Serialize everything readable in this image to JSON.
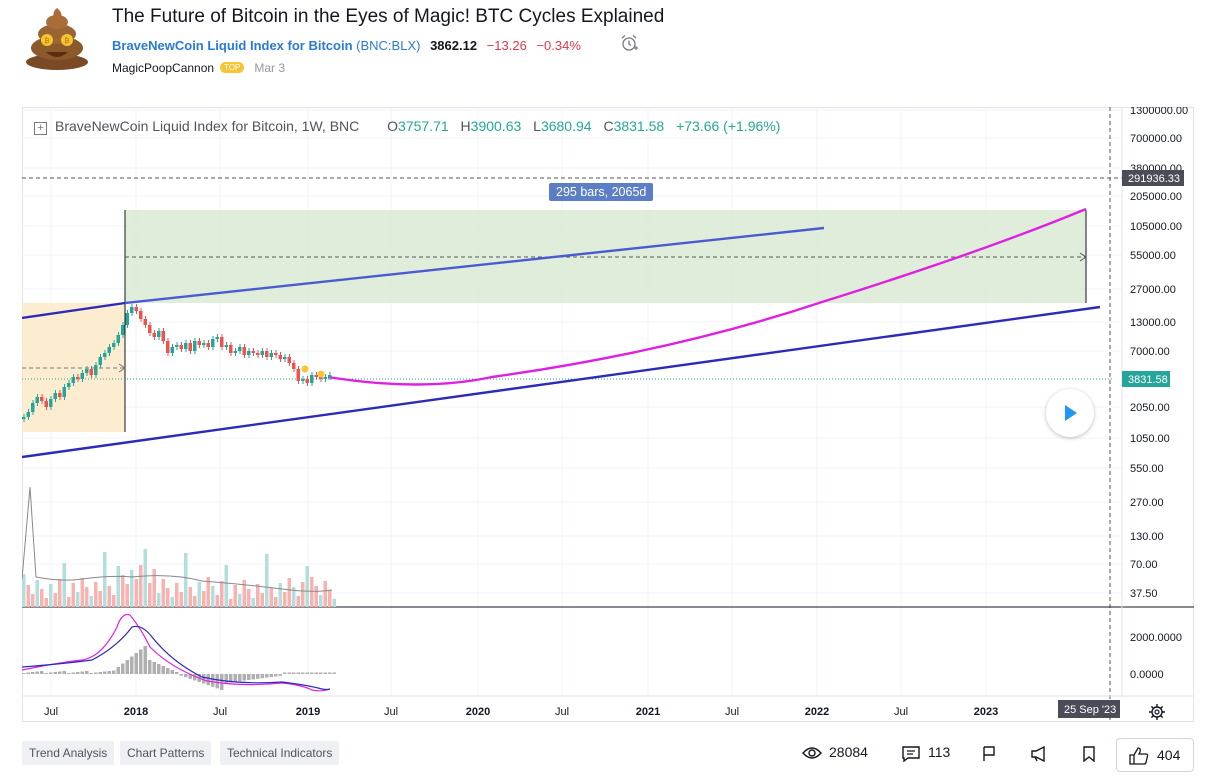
{
  "header": {
    "title": "The Future of Bitcoin in the Eyes of Magic! BTC Cycles Explained",
    "symbol_name": "BraveNewCoin Liquid Index for Bitcoin",
    "symbol_ticker": "(BNC:BLX)",
    "price": "3862.12",
    "change": "−13.26",
    "change_pct": "−0.34%",
    "author": "MagicPoopCannon",
    "badge": "TOP",
    "date": "Mar 3",
    "avatar_icon": "poop-emoji-avatar",
    "alarm_icon": "alarm-clock-icon"
  },
  "chart": {
    "legend_title": "BraveNewCoin Liquid Index for Bitcoin, 1W, BNC",
    "open_label": "O",
    "open": "3757.71",
    "high_label": "H",
    "high": "3900.63",
    "low_label": "L",
    "low": "3680.94",
    "close_label": "C",
    "close": "3831.58",
    "change": "+73.66 (+1.96%)",
    "range_label": "295 bars, 2065d",
    "price_axis": [
      "1300000.00",
      "700000.00",
      "380000.00",
      "205000.00",
      "105000.00",
      "55000.00",
      "27000.00",
      "13000.00",
      "7000.00",
      "2050.00",
      "1050.00",
      "550.00",
      "270.00",
      "130.00",
      "70.00",
      "37.50"
    ],
    "crosshair_price": "291936.33",
    "last_price": "3831.58",
    "macd_axis": [
      "2000.0000",
      "0.0000"
    ],
    "time_axis": [
      "Jul",
      "2018",
      "Jul",
      "2019",
      "Jul",
      "2020",
      "Jul",
      "2021",
      "Jul",
      "2022",
      "Jul",
      "2023"
    ],
    "crosshair_date": "25 Sep '23",
    "colors": {
      "up": "#26a69a",
      "down": "#ef5350",
      "channel": "#2b2bb8",
      "upper_line": "#4a5bd0",
      "projection": "#e020e0",
      "range_box": "#d9ead3",
      "accumulation": "#fde9c4"
    }
  },
  "footer": {
    "tags": [
      "Trend Analysis",
      "Chart Patterns",
      "Technical Indicators"
    ],
    "views": "28084",
    "comments": "113",
    "likes": "404"
  }
}
